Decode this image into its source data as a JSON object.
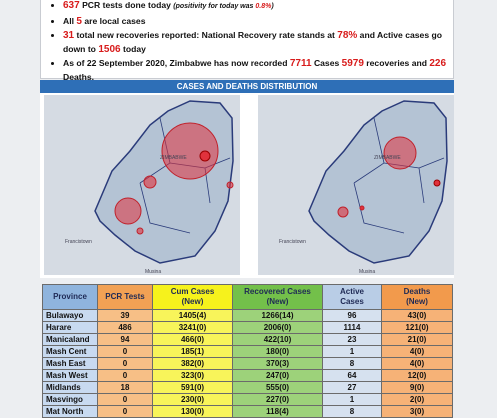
{
  "bullets": [
    [
      {
        "text": "637",
        "highlight": true
      },
      {
        "text": " PCR tests done today "
      },
      {
        "text": "(positivity for today was ",
        "italic": true
      },
      {
        "text": "0.8%",
        "italic": true,
        "highlight": true
      },
      {
        "text": ")",
        "italic": true
      }
    ],
    [
      {
        "text": "All "
      },
      {
        "text": "5",
        "highlight": true
      },
      {
        "text": " are local cases"
      }
    ],
    [
      {
        "text": "31",
        "highlight": true
      },
      {
        "text": " total new recoveries reported: National Recovery rate stands at "
      },
      {
        "text": "78%",
        "highlight": true
      },
      {
        "text": " and Active cases go down to "
      },
      {
        "text": "1506",
        "highlight": true
      },
      {
        "text": " today"
      }
    ],
    [
      {
        "text": "As of 22 September 2020, Zimbabwe has now recorded "
      },
      {
        "text": "7711",
        "highlight": true
      },
      {
        "text": " Cases "
      },
      {
        "text": "5979",
        "highlight": true
      },
      {
        "text": " recoveries and "
      },
      {
        "text": "226",
        "highlight": true
      },
      {
        "text": " Deaths."
      }
    ]
  ],
  "section_title": "CASES AND DEATHS DISTRIBUTION",
  "maps": [
    {
      "labels": [
        "ZIMBABWE",
        "Francistown",
        "Musina"
      ]
    },
    {
      "labels": [
        "ZIMBABWE",
        "Francistown",
        "Musina"
      ]
    }
  ],
  "table": {
    "header": [
      "Province",
      "PCR Tests",
      "Cum Cases\n(New)",
      "Recovered Cases\n(New)",
      "Active\nCases",
      "Deaths\n(New)"
    ],
    "rows": [
      [
        "Bulawayo",
        "39",
        "1405(4)",
        "1266(14)",
        "96",
        "43(0)"
      ],
      [
        "Harare",
        "486",
        "3241(0)",
        "2006(0)",
        "1114",
        "121(0)"
      ],
      [
        "Manicaland",
        "94",
        "466(0)",
        "422(10)",
        "23",
        "21(0)"
      ],
      [
        "Mash Cent",
        "0",
        "185(1)",
        "180(0)",
        "1",
        "4(0)"
      ],
      [
        "Mash East",
        "0",
        "382(0)",
        "370(3)",
        "8",
        "4(0)"
      ],
      [
        "Mash West",
        "0",
        "323(0)",
        "247(0)",
        "64",
        "12(0)"
      ],
      [
        "Midlands",
        "18",
        "591(0)",
        "555(0)",
        "27",
        "9(0)"
      ],
      [
        "Masvingo",
        "0",
        "230(0)",
        "227(0)",
        "1",
        "2(0)"
      ],
      [
        "Mat North",
        "0",
        "130(0)",
        "118(4)",
        "8",
        "3(0)"
      ]
    ]
  }
}
